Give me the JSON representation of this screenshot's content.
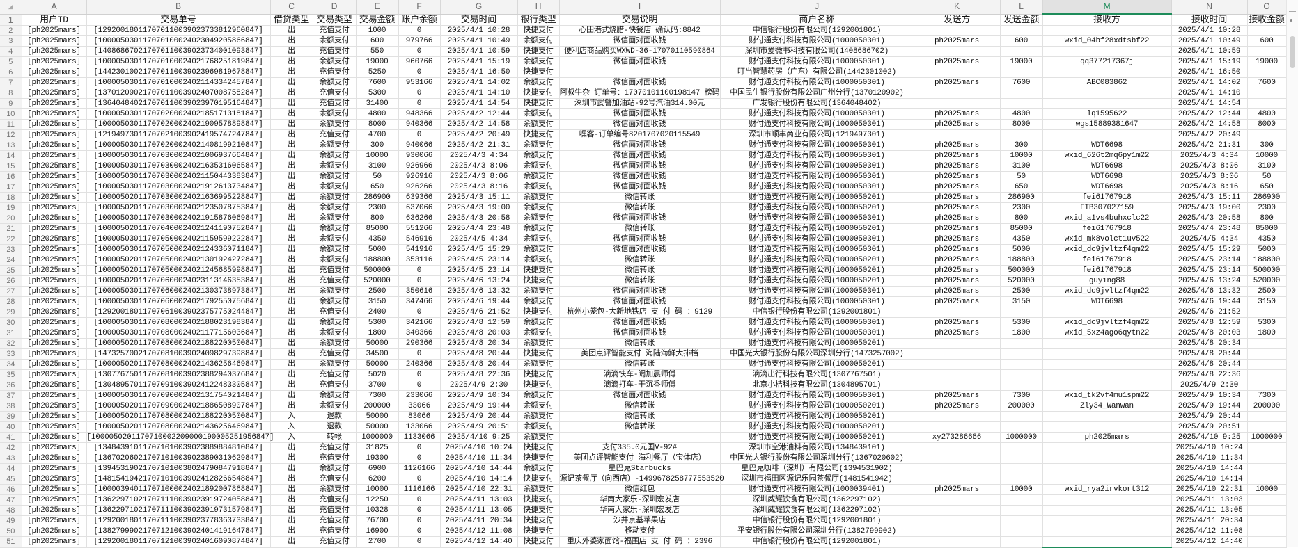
{
  "column_letters": [
    "A",
    "B",
    "C",
    "D",
    "E",
    "F",
    "G",
    "H",
    "I",
    "J",
    "K",
    "L",
    "M",
    "N",
    "O"
  ],
  "selected_column": "M",
  "colors": {
    "selection": "#1e8c5a",
    "header_bg": "#f3f3f3",
    "grid": "#e1e1e1"
  },
  "headers": [
    "用户ID",
    "交易单号",
    "借贷类型",
    "交易类型",
    "交易金额",
    "账户余额",
    "交易时间",
    "银行类型",
    "交易说明",
    "商户名称",
    "发送方",
    "发送金额",
    "接收方",
    "接收时间",
    "接收金额"
  ],
  "rows": [
    [
      "[ph2025mars]",
      "[129200180117070110039023733812960847]",
      "出",
      "充值支付",
      "1000",
      "0",
      "2025/4/1 10:28",
      "快捷支付",
      "心田港式烧腊-快餐店 确认码:8842",
      "中信银行股份有限公司(1292001801)",
      "",
      "",
      "",
      "2025/4/1 10:28",
      ""
    ],
    [
      "[ph2025mars]",
      "[100005030117070100024023049205866847]",
      "出",
      "余额支付",
      "600",
      "979766",
      "2025/4/1 10:49",
      "余额支付",
      "微信面对面收钱",
      "财付通支付科技有限公司(1000050301)",
      "ph2025mars",
      "600",
      "wxid_04bf28xdtsbf22",
      "2025/4/1 10:49",
      "600"
    ],
    [
      "[ph2025mars]",
      "[140868670217070110039023734001093847]",
      "出",
      "充值支付",
      "550",
      "0",
      "2025/4/1 10:59",
      "快捷支付",
      "便利店商品购买WXWD-36-17070110590864",
      "深圳市爱微书科技有限公司(1408686702)",
      "",
      "",
      "",
      "2025/4/1 10:59",
      ""
    ],
    [
      "[ph2025mars]",
      "[100005030117070100024021768251819847]",
      "出",
      "余额支付",
      "19000",
      "960766",
      "2025/4/1 15:19",
      "余额支付",
      "微信面对面收钱",
      "财付通支付科技有限公司(1000050301)",
      "ph2025mars",
      "19000",
      "qq377217367j",
      "2025/4/1 15:19",
      "19000"
    ],
    [
      "[ph2025mars]",
      "[144230100217070110039023969819678847]",
      "出",
      "充值支付",
      "5250",
      "0",
      "2025/4/1 16:50",
      "快捷支付",
      "",
      "叮当智慧药房（广东）有限公司(1442301002)",
      "",
      "",
      "",
      "2025/4/1 16:50",
      ""
    ],
    [
      "[ph2025mars]",
      "[100005030117070100024021143342457847]",
      "出",
      "余额支付",
      "7600",
      "953166",
      "2025/4/1 14:02",
      "余额支付",
      "微信面对面收钱",
      "财付通支付科技有限公司(1000050301)",
      "ph2025mars",
      "7600",
      "ABC083862",
      "2025/4/1 14:02",
      "7600"
    ],
    [
      "[ph2025mars]",
      "[137012090217070110039024070087582847]",
      "出",
      "充值支付",
      "5300",
      "0",
      "2025/4/1 14:10",
      "快捷支付",
      "阿叔牛杂 订单号：17070101100198147 榜码",
      "中国民生银行股份有限公司广州分行(1370120902)",
      "",
      "",
      "",
      "2025/4/1 14:10",
      ""
    ],
    [
      "[ph2025mars]",
      "[136404840217070110039023970195164847]",
      "出",
      "充值支付",
      "31400",
      "0",
      "2025/4/1 14:54",
      "快捷支付",
      "深圳市武警加油站-92号汽油314.00元",
      "广发银行股份有限公司(1364048402)",
      "",
      "",
      "",
      "2025/4/1 14:54",
      ""
    ],
    [
      "[ph2025mars]",
      "[100005030117070200024021851713181847]",
      "出",
      "余额支付",
      "4800",
      "948366",
      "2025/4/2 12:44",
      "余额支付",
      "微信面对面收钱",
      "财付通支付科技有限公司(1000050301)",
      "ph2025mars",
      "4800",
      "lq1595622",
      "2025/4/2 12:44",
      "4800"
    ],
    [
      "[ph2025mars]",
      "[100005030117070200024021909578898847]",
      "出",
      "余额支付",
      "8000",
      "940366",
      "2025/4/2 14:58",
      "余额支付",
      "微信面对面收钱",
      "财付通支付科技有限公司(1000050301)",
      "ph2025mars",
      "8000",
      "wgs15889381647",
      "2025/4/2 14:58",
      "8000"
    ],
    [
      "[ph2025mars]",
      "[121949730117070210039024195747247847]",
      "出",
      "充值支付",
      "4700",
      "0",
      "2025/4/2 20:49",
      "快捷支付",
      "嘿客-订单编号8201707020115549",
      "深圳市顺丰商业有限公司(1219497301)",
      "",
      "",
      "",
      "2025/4/2 20:49",
      ""
    ],
    [
      "[ph2025mars]",
      "[100005030117070200024021408199210847]",
      "出",
      "余额支付",
      "300",
      "940066",
      "2025/4/2 21:31",
      "余额支付",
      "微信面对面收钱",
      "财付通支付科技有限公司(1000050301)",
      "ph2025mars",
      "300",
      "WDT6698",
      "2025/4/2 21:31",
      "300"
    ],
    [
      "[ph2025mars]",
      "[100005030117070300024021006937664847]",
      "出",
      "余额支付",
      "10000",
      "930066",
      "2025/4/3 4:34",
      "余额支付",
      "微信面对面收钱",
      "财付通支付科技有限公司(1000050301)",
      "ph2025mars",
      "10000",
      "wxid_626t2mq6py1m22",
      "2025/4/3 4:34",
      "10000"
    ],
    [
      "[ph2025mars]",
      "[100005030117070300024021635316065847]",
      "出",
      "余额支付",
      "3100",
      "926966",
      "2025/4/3 8:06",
      "余额支付",
      "微信面对面收钱",
      "财付通支付科技有限公司(1000050301)",
      "ph2025mars",
      "3100",
      "WDT6698",
      "2025/4/3 8:06",
      "3100"
    ],
    [
      "[ph2025mars]",
      "[100005030117070300024021150443383847]",
      "出",
      "余额支付",
      "50",
      "926916",
      "2025/4/3 8:06",
      "余额支付",
      "微信面对面收钱",
      "财付通支付科技有限公司(1000050301)",
      "ph2025mars",
      "50",
      "WDT6698",
      "2025/4/3 8:06",
      "50"
    ],
    [
      "[ph2025mars]",
      "[100005030117070300024021912613734847]",
      "出",
      "余额支付",
      "650",
      "926266",
      "2025/4/3 8:16",
      "余额支付",
      "微信面对面收钱",
      "财付通支付科技有限公司(1000050301)",
      "ph2025mars",
      "650",
      "WDT6698",
      "2025/4/3 8:16",
      "650"
    ],
    [
      "[ph2025mars]",
      "[100005020117070300024021636995228847]",
      "出",
      "余额支付",
      "286900",
      "639366",
      "2025/4/3 15:11",
      "余额支付",
      "微信转账",
      "财付通支付科技有限公司(1000050201)",
      "ph2025mars",
      "286900",
      "fei61767918",
      "2025/4/3 15:11",
      "286900"
    ],
    [
      "[ph2025mars]",
      "[100005020117070300024021235078753847]",
      "出",
      "余额支付",
      "2300",
      "637066",
      "2025/4/3 19:00",
      "余额支付",
      "微信转账",
      "财付通支付科技有限公司(1000050201)",
      "ph2025mars",
      "2300",
      "FTB307027159",
      "2025/4/3 19:00",
      "2300"
    ],
    [
      "[ph2025mars]",
      "[100005030117070300024021915876069847]",
      "出",
      "余额支付",
      "800",
      "636266",
      "2025/4/3 20:58",
      "余额支付",
      "微信面对面收钱",
      "财付通支付科技有限公司(1000050301)",
      "ph2025mars",
      "800",
      "wxid_a1vs4buhxclc22",
      "2025/4/3 20:58",
      "800"
    ],
    [
      "[ph2025mars]",
      "[100005020117070400024021241190752847]",
      "出",
      "余额支付",
      "85000",
      "551266",
      "2025/4/4 23:48",
      "余额支付",
      "微信转账",
      "财付通支付科技有限公司(1000050201)",
      "ph2025mars",
      "85000",
      "fei61767918",
      "2025/4/4 23:48",
      "85000"
    ],
    [
      "[ph2025mars]",
      "[100005030117070500024021159599222847]",
      "出",
      "余额支付",
      "4350",
      "546916",
      "2025/4/5 4:34",
      "余额支付",
      "微信面对面收钱",
      "财付通支付科技有限公司(1000050301)",
      "ph2025mars",
      "4350",
      "wxid_mk8volct1uv522",
      "2025/4/5 4:34",
      "4350"
    ],
    [
      "[ph2025mars]",
      "[100005030117070500024021243360711847]",
      "出",
      "余额支付",
      "5000",
      "541916",
      "2025/4/5 15:29",
      "余额支付",
      "微信面对面收钱",
      "财付通支付科技有限公司(1000050301)",
      "ph2025mars",
      "5000",
      "wxid_dc9jvltzf4qm22",
      "2025/4/5 15:29",
      "5000"
    ],
    [
      "[ph2025mars]",
      "[100005020117070500024021301924272847]",
      "出",
      "余额支付",
      "188800",
      "353116",
      "2025/4/5 23:14",
      "余额支付",
      "微信转账",
      "财付通支付科技有限公司(1000050201)",
      "ph2025mars",
      "188800",
      "fei61767918",
      "2025/4/5 23:14",
      "188800"
    ],
    [
      "[ph2025mars]",
      "[100005020117070500024021245685998847]",
      "出",
      "充值支付",
      "500000",
      "0",
      "2025/4/5 23:14",
      "快捷支付",
      "微信转账",
      "财付通支付科技有限公司(1000050201)",
      "ph2025mars",
      "500000",
      "fei61767918",
      "2025/4/5 23:14",
      "500000"
    ],
    [
      "[ph2025mars]",
      "[100005020117070600024023113146353847]",
      "出",
      "充值支付",
      "520000",
      "0",
      "2025/4/6 13:24",
      "快捷支付",
      "微信转账",
      "财付通支付科技有限公司(1000050201)",
      "ph2025mars",
      "520000",
      "guying88",
      "2025/4/6 13:24",
      "520000"
    ],
    [
      "[ph2025mars]",
      "[100005030117070600024021303738973847]",
      "出",
      "余额支付",
      "2500",
      "350616",
      "2025/4/6 13:32",
      "余额支付",
      "微信面对面收钱",
      "财付通支付科技有限公司(1000050301)",
      "ph2025mars",
      "2500",
      "wxid_dc9jvltzf4qm22",
      "2025/4/6 13:32",
      "2500"
    ],
    [
      "[ph2025mars]",
      "[100005030117070600024021792550756847]",
      "出",
      "余额支付",
      "3150",
      "347466",
      "2025/4/6 19:44",
      "余额支付",
      "微信面对面收钱",
      "财付通支付科技有限公司(1000050301)",
      "ph2025mars",
      "3150",
      "WDT6698",
      "2025/4/6 19:44",
      "3150"
    ],
    [
      "[ph2025mars]",
      "[129200180117070610039023757750244847]",
      "出",
      "充值支付",
      "2400",
      "0",
      "2025/4/6 21:52",
      "快捷支付",
      "杭州小笼包-大新地铁店 支 付 码 ：9129",
      "中信银行股份有限公司(1292001801)",
      "",
      "",
      "",
      "2025/4/6 21:52",
      ""
    ],
    [
      "[ph2025mars]",
      "[100005030117070800024021880231983847]",
      "出",
      "余额支付",
      "5300",
      "342166",
      "2025/4/8 12:59",
      "余额支付",
      "微信面对面收钱",
      "财付通支付科技有限公司(1000050301)",
      "ph2025mars",
      "5300",
      "wxid_dc9jvltzf4qm22",
      "2025/4/8 12:59",
      "5300"
    ],
    [
      "[ph2025mars]",
      "[100005030117070800024021177156036847]",
      "出",
      "余额支付",
      "1800",
      "340366",
      "2025/4/8 20:03",
      "余额支付",
      "微信面对面收钱",
      "财付通支付科技有限公司(1000050301)",
      "ph2025mars",
      "1800",
      "wxid_5xz4ago6qytn22",
      "2025/4/8 20:03",
      "1800"
    ],
    [
      "[ph2025mars]",
      "[100005020117070800024021882200500847]",
      "出",
      "余额支付",
      "50000",
      "290366",
      "2025/4/8 20:34",
      "余额支付",
      "微信转账",
      "财付通支付科技有限公司(1000050201)",
      "",
      "",
      "",
      "2025/4/8 20:34",
      ""
    ],
    [
      "[ph2025mars]",
      "[147325700217070810039024098297398847]",
      "出",
      "充值支付",
      "34500",
      "0",
      "2025/4/8 20:44",
      "快捷支付",
      "美团点评智能支付 海陆海鲜大排档",
      "中国光大银行股份有限公司深圳分行(1473257002)",
      "",
      "",
      "",
      "2025/4/8 20:44",
      ""
    ],
    [
      "[ph2025mars]",
      "[100005020117070800024021436256469847]",
      "出",
      "余额支付",
      "50000",
      "240366",
      "2025/4/8 20:44",
      "余额支付",
      "微信转账",
      "财付通支付科技有限公司(1000050201)",
      "",
      "",
      "",
      "2025/4/8 20:44",
      ""
    ],
    [
      "[ph2025mars]",
      "[130776750117070810039023882940376847]",
      "出",
      "充值支付",
      "5020",
      "0",
      "2025/4/8 22:36",
      "快捷支付",
      "滴滴快车-阚加晨师傅",
      "滴滴出行科技有限公司(1307767501)",
      "",
      "",
      "",
      "2025/4/8 22:36",
      ""
    ],
    [
      "[ph2025mars]",
      "[130489570117070910039024122483305847]",
      "出",
      "充值支付",
      "3700",
      "0",
      "2025/4/9 2:30",
      "快捷支付",
      "滴滴打车-干沉香师傅",
      "北京小桔科技有限公司(1304895701)",
      "",
      "",
      "",
      "2025/4/9 2:30",
      ""
    ],
    [
      "[ph2025mars]",
      "[100005030117070900024021317540214847]",
      "出",
      "余额支付",
      "7300",
      "233066",
      "2025/4/9 10:34",
      "余额支付",
      "微信面对面收钱",
      "财付通支付科技有限公司(1000050301)",
      "ph2025mars",
      "7300",
      "wxid_tk2vf4mu1spm22",
      "2025/4/9 10:34",
      "7300"
    ],
    [
      "[ph2025mars]",
      "[100005020117070900024021886508907847]",
      "出",
      "余额支付",
      "200000",
      "33066",
      "2025/4/9 19:44",
      "余额支付",
      "微信转账",
      "财付通支付科技有限公司(1000050201)",
      "ph2025mars",
      "200000",
      "Zly34_Wanwan",
      "2025/4/9 19:44",
      "200000"
    ],
    [
      "[ph2025mars]",
      "[100005020117070800024021882200500847]",
      "入",
      "退款",
      "50000",
      "83066",
      "2025/4/9 20:44",
      "余额支付",
      "微信转账",
      "财付通支付科技有限公司(1000050201)",
      "",
      "",
      "",
      "2025/4/9 20:44",
      ""
    ],
    [
      "[ph2025mars]",
      "[100005020117070800024021436256469847]",
      "入",
      "退款",
      "50000",
      "133066",
      "2025/4/9 20:51",
      "余额支付",
      "微信转账",
      "财付通支付科技有限公司(1000050201)",
      "",
      "",
      "",
      "2025/4/9 20:51",
      ""
    ],
    [
      "[ph2025mars]",
      "[1000050201170710002209000190005251956847]",
      "入",
      "转帐",
      "1000000",
      "1133066",
      "2025/4/10 9:25",
      "余额支付",
      "",
      "财付通支付科技有限公司(1000050201)",
      "xy273286666",
      "1000000",
      "ph2025mars",
      "2025/4/10 9:25",
      "1000000"
    ],
    [
      "[ph2025mars]",
      "[134843910117071010039023889884810847]",
      "出",
      "充值支付",
      "31825",
      "0",
      "2025/4/10 10:24",
      "快捷支付",
      "支付335.0元国V-92#",
      "深圳市空港油料有限公司(1348439101)",
      "",
      "",
      "",
      "2025/4/10 10:24",
      ""
    ],
    [
      "[ph2025mars]",
      "[136702060217071010039023890310629847]",
      "出",
      "充值支付",
      "19300",
      "0",
      "2025/4/10 11:34",
      "快捷支付",
      "美团点评智能支付 海利餐厅（宝体店）",
      "中国光大银行股份有限公司深圳分行(1367020602)",
      "",
      "",
      "",
      "2025/4/10 11:34",
      ""
    ],
    [
      "[ph2025mars]",
      "[139453190217071010038024790847918847]",
      "出",
      "余额支付",
      "6900",
      "1126166",
      "2025/4/10 14:44",
      "余额支付",
      "星巴克Starbucks",
      "星巴克咖啡（深圳）有限公司(1394531902)",
      "",
      "",
      "",
      "2025/4/10 14:44",
      ""
    ],
    [
      "[ph2025mars]",
      "[148154194217071010039024128266548847]",
      "出",
      "充值支付",
      "6200",
      "0",
      "2025/4/10 14:14",
      "快捷支付",
      "源记茶餐厅（向西店）-1499678258777553520",
      "深圳市福田区源记乐园茶餐厅(1481541942)",
      "",
      "",
      "",
      "2025/4/10 14:14",
      ""
    ],
    [
      "[ph2025mars]",
      "[100003940117071000024021892007868847]",
      "出",
      "余额支付",
      "10000",
      "1116166",
      "2025/4/10 22:31",
      "余额支付",
      "微信红包",
      "财付通支付科技有限公司(1000039401)",
      "ph2025mars",
      "10000",
      "wxid_rya2irvkort312",
      "2025/4/10 22:31",
      "10000"
    ],
    [
      "[ph2025mars]",
      "[136229710217071110039023919724058847]",
      "出",
      "充值支付",
      "12250",
      "0",
      "2025/4/11 13:03",
      "快捷支付",
      "华南大家乐-深圳宏发店",
      "深圳威耀饮食有限公司(1362297102)",
      "",
      "",
      "",
      "2025/4/11 13:03",
      ""
    ],
    [
      "[ph2025mars]",
      "[136229710217071110039023919731579847]",
      "出",
      "充值支付",
      "10328",
      "0",
      "2025/4/11 13:05",
      "快捷支付",
      "华南大家乐-深圳宏发店",
      "深圳威耀饮食有限公司(1362297102)",
      "",
      "",
      "",
      "2025/4/11 13:05",
      ""
    ],
    [
      "[ph2025mars]",
      "[129200180117071110039023778363733847]",
      "出",
      "充值支付",
      "76700",
      "0",
      "2025/4/11 20:34",
      "快捷支付",
      "沙井京基苹果店",
      "中信银行股份有限公司(1292001801)",
      "",
      "",
      "",
      "2025/4/11 20:34",
      ""
    ],
    [
      "[ph2025mars]",
      "[138279990217071210039024014191647847]",
      "出",
      "充值支付",
      "16900",
      "0",
      "2025/4/12 11:08",
      "快捷支付",
      "移动支付",
      "平安银行股份有限公司深圳分行(1382799902)",
      "",
      "",
      "",
      "2025/4/12 11:08",
      ""
    ],
    [
      "[ph2025mars]",
      "[129200180117071210039024016090874847]",
      "出",
      "充值支付",
      "2700",
      "0",
      "2025/4/12 14:40",
      "快捷支付",
      "重庆外婆家面馆-福围店 支 付 码 ：2396",
      "中信银行股份有限公司(1292001801)",
      "",
      "",
      "",
      "2025/4/12 14:40",
      ""
    ]
  ]
}
